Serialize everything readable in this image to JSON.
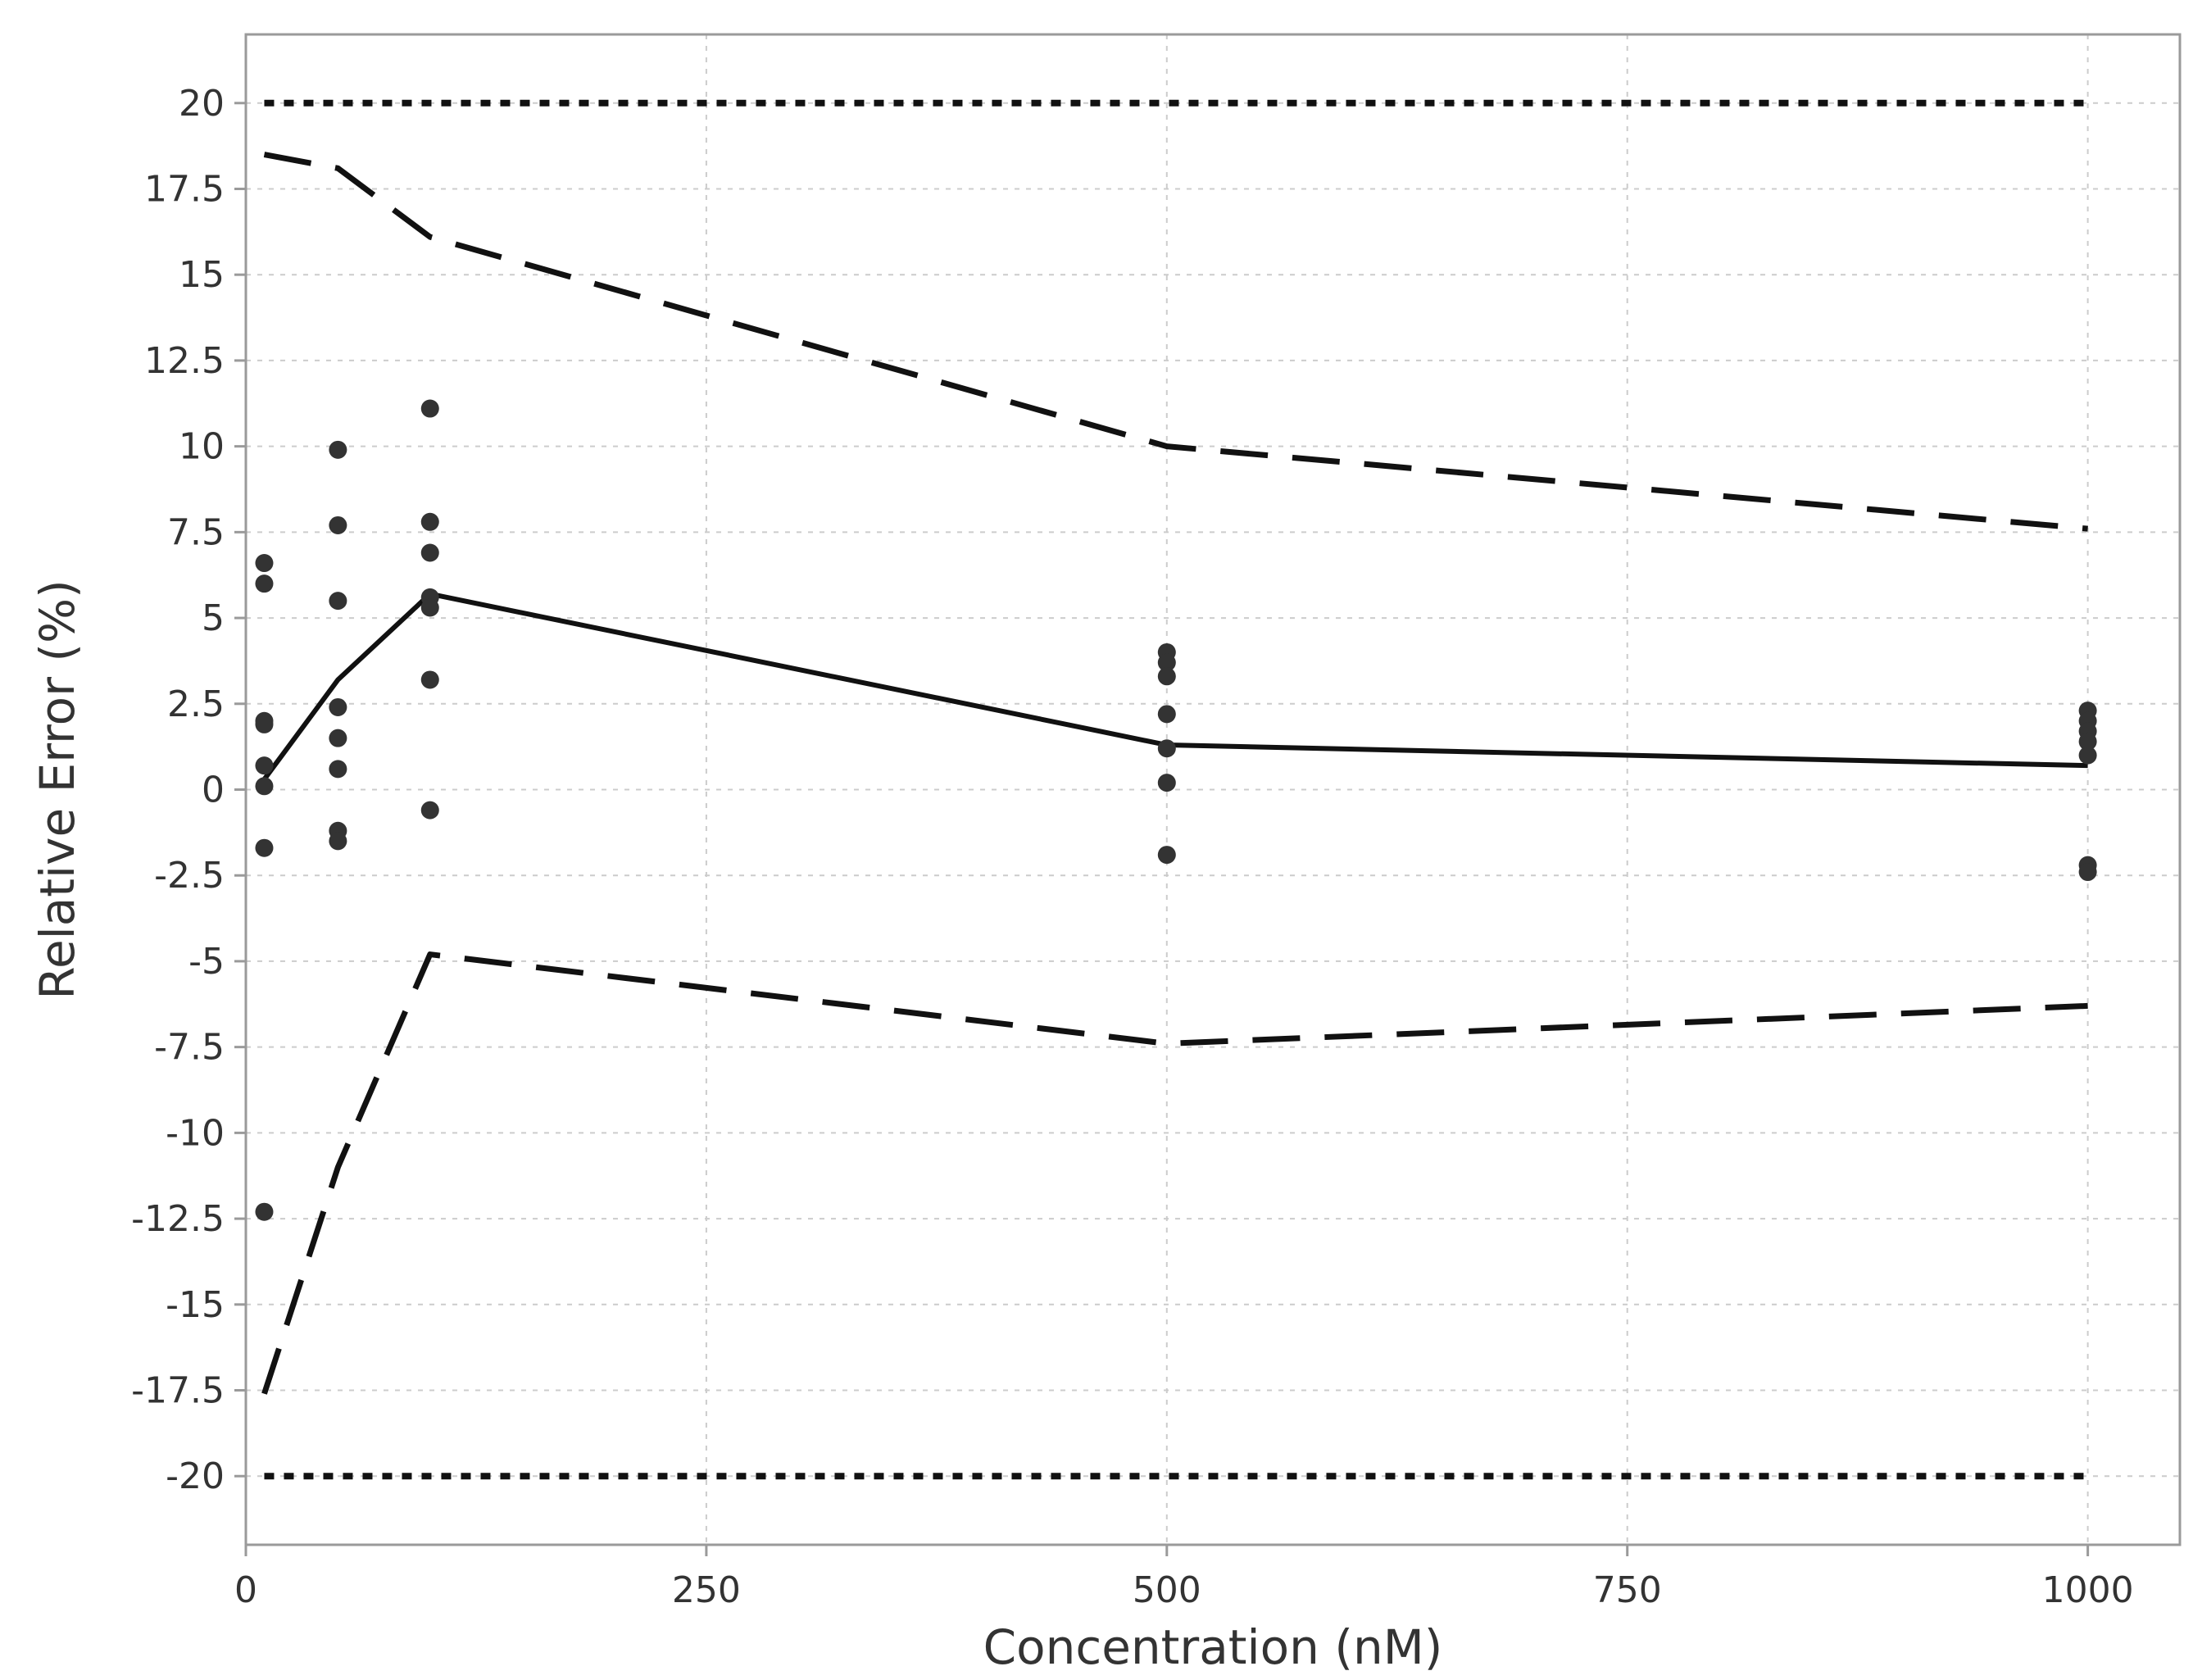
{
  "chart_data": {
    "type": "scatter",
    "title": "",
    "xlabel": "Concentration (nM)",
    "ylabel": "Relative Error (%)",
    "xlim": [
      0,
      1050
    ],
    "ylim": [
      -22,
      22
    ],
    "xticks": [
      0,
      250,
      500,
      750,
      1000
    ],
    "yticks": [
      20,
      17.5,
      15,
      12.5,
      10,
      7.5,
      5,
      2.5,
      0,
      -2.5,
      -5,
      -7.5,
      -10,
      -12.5,
      -15,
      -17.5,
      -20
    ],
    "grid": true,
    "legend": "none",
    "colors": {
      "points": "#333333",
      "lines": "#111111",
      "grid": "#cccccc"
    },
    "points": [
      [
        10,
        6.6
      ],
      [
        10,
        6.0
      ],
      [
        10,
        2.0
      ],
      [
        10,
        1.9
      ],
      [
        10,
        0.7
      ],
      [
        10,
        0.1
      ],
      [
        10,
        -1.7
      ],
      [
        10,
        -12.3
      ],
      [
        50,
        9.9
      ],
      [
        50,
        7.7
      ],
      [
        50,
        5.5
      ],
      [
        50,
        2.4
      ],
      [
        50,
        1.5
      ],
      [
        50,
        0.6
      ],
      [
        50,
        -1.2
      ],
      [
        50,
        -1.5
      ],
      [
        100,
        11.1
      ],
      [
        100,
        7.8
      ],
      [
        100,
        6.9
      ],
      [
        100,
        5.6
      ],
      [
        100,
        5.3
      ],
      [
        100,
        3.2
      ],
      [
        100,
        -0.6
      ],
      [
        500,
        4.0
      ],
      [
        500,
        3.7
      ],
      [
        500,
        3.3
      ],
      [
        500,
        2.2
      ],
      [
        500,
        1.2
      ],
      [
        500,
        0.2
      ],
      [
        500,
        -1.9
      ],
      [
        1000,
        2.3
      ],
      [
        1000,
        2.0
      ],
      [
        1000,
        1.7
      ],
      [
        1000,
        1.4
      ],
      [
        1000,
        1.0
      ],
      [
        1000,
        -2.2
      ],
      [
        1000,
        -2.4
      ]
    ],
    "series": [
      {
        "x": [
          10,
          50,
          100,
          500,
          1000
        ],
        "y": [
          18.5,
          18.1,
          16.1,
          10.0,
          7.6
        ],
        "style": "dashed"
      },
      {
        "x": [
          10,
          50,
          100,
          500,
          1000
        ],
        "y": [
          0.3,
          3.2,
          5.7,
          1.3,
          0.7
        ],
        "style": "solid"
      },
      {
        "x": [
          10,
          50,
          100,
          500,
          1000
        ],
        "y": [
          -17.6,
          -11.0,
          -4.8,
          -7.4,
          -6.3
        ],
        "style": "dashed"
      },
      {
        "x": [
          10,
          1000
        ],
        "y": [
          20,
          20
        ],
        "style": "dotted"
      },
      {
        "x": [
          10,
          1000
        ],
        "y": [
          -20,
          -20
        ],
        "style": "dotted"
      }
    ]
  }
}
